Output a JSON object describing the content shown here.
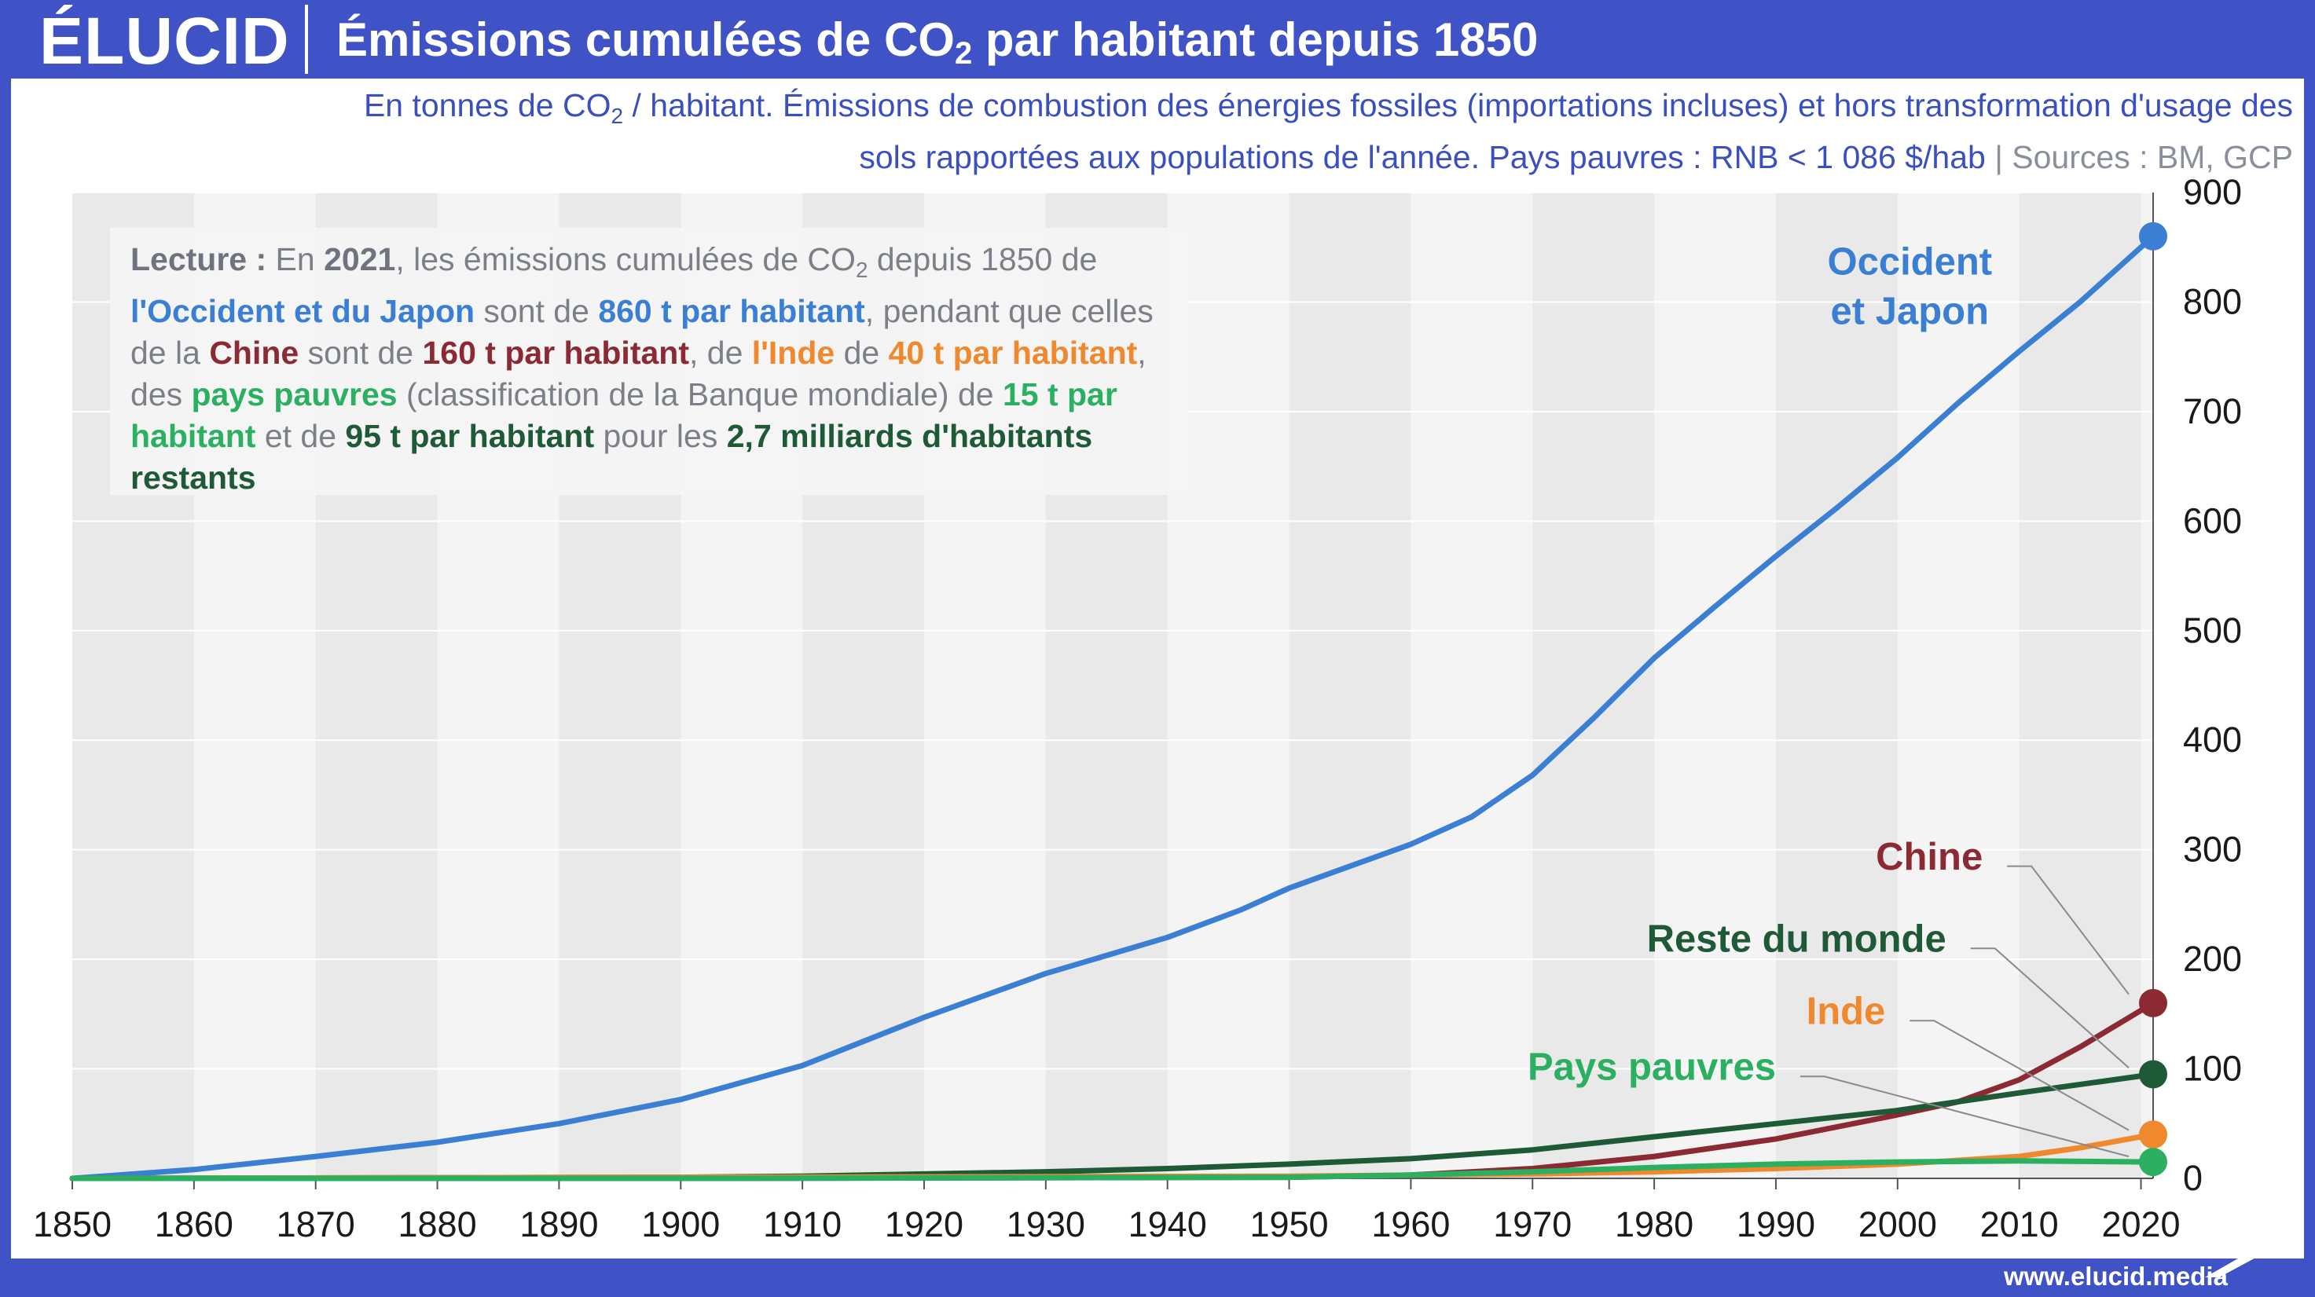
{
  "header": {
    "logo": "ÉLUCID",
    "title_pre": "Émissions cumulées de CO",
    "title_sub": "2",
    "title_post": " par habitant depuis 1850",
    "subtitle_a": "En tonnes de CO",
    "subtitle_sub": "2",
    "subtitle_b": " / habitant. Émissions de combustion des énergies fossiles (importations incluses) et hors transformation d'usage des sols rapportées aux populations de l'année. Pays pauvres : RNB < 1 086 $/hab",
    "subtitle_sep": "  |  ",
    "subtitle_sources": "Sources : BM, GCP"
  },
  "note": {
    "t1": "Lecture :",
    "t2": " En ",
    "t3": "2021",
    "t4": ", les émissions cumulées de CO",
    "t4sub": "2",
    "t5": " depuis 1850 de ",
    "t6": "l'Occident et du Japon",
    "t7": " sont de ",
    "t8": "860 t par habitant",
    "t9": ", pendant que celles de la ",
    "t10": "Chine",
    "t11": " sont de ",
    "t12": "160 t par habitant",
    "t13": ", de ",
    "t14": "l'Inde",
    "t15": " de ",
    "t16": "40 t par habitant",
    "t17": ", des ",
    "t18": "pays pauvres",
    "t19": " (classification de la Banque mondiale) de ",
    "t20": "15 t par habitant",
    "t21": " et de ",
    "t22": "95 t par habitant",
    "t23": " pour les ",
    "t24": "2,7 milliards d'habitants restants"
  },
  "footer": {
    "url": "www.elucid.media"
  },
  "colors": {
    "occident": "#3a7fd4",
    "chine": "#8b2a32",
    "inde": "#f0892e",
    "pauvres": "#2ab060",
    "reste": "#1e5a36",
    "brand": "#3f53c6"
  },
  "chart_data": {
    "type": "line",
    "title": "Émissions cumulées de CO2 par habitant depuis 1850",
    "xlabel": "",
    "ylabel": "",
    "xlim": [
      1850,
      2021
    ],
    "ylim": [
      0,
      900
    ],
    "x_ticks": [
      "1850",
      "1860",
      "1870",
      "1880",
      "1890",
      "1900",
      "1910",
      "1920",
      "1930",
      "1940",
      "1950",
      "1960",
      "1970",
      "1980",
      "1990",
      "2000",
      "2010",
      "2020"
    ],
    "y_ticks": [
      "0",
      "100",
      "200",
      "300",
      "400",
      "500",
      "600",
      "700",
      "800",
      "900"
    ],
    "grid": true,
    "series": [
      {
        "name": "Occident et Japon",
        "label_lines": [
          "Occident",
          "et Japon"
        ],
        "color": "#3a7fd4",
        "x": [
          1850,
          1860,
          1870,
          1880,
          1890,
          1900,
          1910,
          1920,
          1930,
          1940,
          1946,
          1950,
          1955,
          1960,
          1965,
          1970,
          1975,
          1980,
          1985,
          1990,
          1995,
          2000,
          2005,
          2010,
          2015,
          2021
        ],
        "y": [
          0,
          8,
          20,
          33,
          50,
          72,
          103,
          147,
          187,
          220,
          245,
          265,
          285,
          305,
          330,
          368,
          420,
          475,
          522,
          568,
          612,
          658,
          708,
          755,
          800,
          860
        ]
      },
      {
        "name": "Chine",
        "color": "#8b2a32",
        "x": [
          1850,
          1900,
          1950,
          1960,
          1970,
          1980,
          1990,
          2000,
          2005,
          2010,
          2015,
          2021
        ],
        "y": [
          0,
          0,
          1,
          3,
          9,
          20,
          36,
          58,
          70,
          90,
          120,
          160
        ]
      },
      {
        "name": "Reste du monde",
        "color": "#1e5a36",
        "x": [
          1850,
          1900,
          1910,
          1920,
          1930,
          1940,
          1950,
          1960,
          1970,
          1980,
          1990,
          2000,
          2010,
          2021
        ],
        "y": [
          0,
          1,
          2,
          4,
          6,
          9,
          13,
          18,
          26,
          38,
          50,
          62,
          78,
          95
        ]
      },
      {
        "name": "Inde",
        "color": "#f0892e",
        "x": [
          1850,
          1900,
          1950,
          1960,
          1970,
          1980,
          1990,
          2000,
          2010,
          2015,
          2021
        ],
        "y": [
          0,
          1,
          2,
          3,
          4,
          6,
          9,
          13,
          20,
          28,
          40
        ]
      },
      {
        "name": "Pays pauvres",
        "color": "#2ab060",
        "x": [
          1850,
          1900,
          1950,
          1960,
          1970,
          1980,
          1990,
          2000,
          2010,
          2021
        ],
        "y": [
          0,
          0,
          1,
          3,
          6,
          10,
          13,
          15,
          16,
          15
        ]
      }
    ]
  }
}
